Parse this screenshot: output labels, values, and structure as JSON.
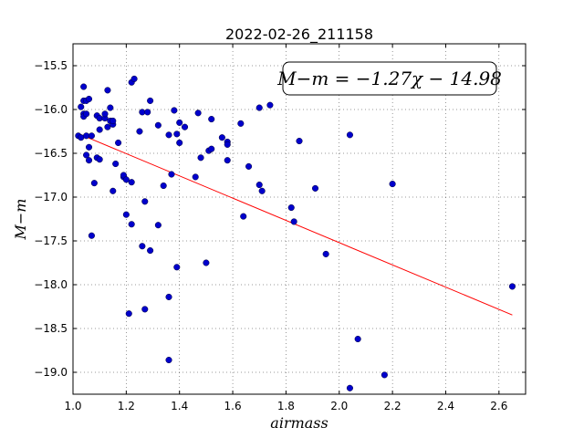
{
  "chart_data": {
    "type": "scatter",
    "title": "2022-02-26_211158",
    "xlabel": "airmass",
    "ylabel": "M−m",
    "xlim": [
      1.0,
      2.7
    ],
    "ylim": [
      -19.25,
      -15.25
    ],
    "xticks": [
      1.0,
      1.2,
      1.4,
      1.6,
      1.8,
      2.0,
      2.2,
      2.4,
      2.6
    ],
    "xtick_labels": [
      "1.0",
      "1.2",
      "1.4",
      "1.6",
      "1.8",
      "2.0",
      "2.2",
      "2.4",
      "2.6"
    ],
    "yticks": [
      -15.5,
      -16.0,
      -16.5,
      -17.0,
      -17.5,
      -18.0,
      -18.5,
      -19.0
    ],
    "ytick_labels": [
      "−15.5",
      "−16.0",
      "−16.5",
      "−17.0",
      "−17.5",
      "−18.0",
      "−18.5",
      "−19.0"
    ],
    "grid": true,
    "annotation": "M−m = −1.27χ − 14.98",
    "annotation_placement": "top-right",
    "fit": {
      "slope": -1.27,
      "intercept": -14.98,
      "x_range": [
        1.02,
        2.65
      ],
      "color": "#ff0000"
    },
    "marker_color": "#0000cc",
    "points": [
      [
        1.02,
        -16.3
      ],
      [
        1.03,
        -16.32
      ],
      [
        1.03,
        -15.97
      ],
      [
        1.04,
        -15.74
      ],
      [
        1.04,
        -15.9
      ],
      [
        1.04,
        -16.05
      ],
      [
        1.04,
        -16.08
      ],
      [
        1.05,
        -15.9
      ],
      [
        1.05,
        -16.05
      ],
      [
        1.05,
        -16.3
      ],
      [
        1.05,
        -16.52
      ],
      [
        1.06,
        -15.88
      ],
      [
        1.06,
        -16.43
      ],
      [
        1.06,
        -16.58
      ],
      [
        1.07,
        -16.3
      ],
      [
        1.07,
        -17.44
      ],
      [
        1.08,
        -16.84
      ],
      [
        1.09,
        -16.07
      ],
      [
        1.09,
        -16.55
      ],
      [
        1.1,
        -16.1
      ],
      [
        1.1,
        -16.23
      ],
      [
        1.1,
        -16.57
      ],
      [
        1.12,
        -16.1
      ],
      [
        1.12,
        -16.05
      ],
      [
        1.13,
        -15.78
      ],
      [
        1.13,
        -16.2
      ],
      [
        1.14,
        -16.13
      ],
      [
        1.14,
        -15.98
      ],
      [
        1.15,
        -16.17
      ],
      [
        1.15,
        -16.13
      ],
      [
        1.15,
        -16.93
      ],
      [
        1.16,
        -16.62
      ],
      [
        1.17,
        -16.38
      ],
      [
        1.19,
        -16.77
      ],
      [
        1.19,
        -16.75
      ],
      [
        1.2,
        -17.2
      ],
      [
        1.2,
        -16.8
      ],
      [
        1.21,
        -18.33
      ],
      [
        1.22,
        -15.69
      ],
      [
        1.22,
        -16.83
      ],
      [
        1.22,
        -17.31
      ],
      [
        1.23,
        -15.65
      ],
      [
        1.25,
        -16.25
      ],
      [
        1.26,
        -16.03
      ],
      [
        1.26,
        -17.56
      ],
      [
        1.27,
        -17.05
      ],
      [
        1.27,
        -18.28
      ],
      [
        1.28,
        -16.03
      ],
      [
        1.29,
        -15.9
      ],
      [
        1.29,
        -17.61
      ],
      [
        1.32,
        -16.18
      ],
      [
        1.32,
        -17.32
      ],
      [
        1.34,
        -16.87
      ],
      [
        1.36,
        -16.29
      ],
      [
        1.36,
        -18.14
      ],
      [
        1.36,
        -18.86
      ],
      [
        1.37,
        -16.74
      ],
      [
        1.38,
        -16.01
      ],
      [
        1.39,
        -16.28
      ],
      [
        1.39,
        -17.8
      ],
      [
        1.4,
        -16.15
      ],
      [
        1.4,
        -16.38
      ],
      [
        1.42,
        -16.2
      ],
      [
        1.46,
        -16.77
      ],
      [
        1.47,
        -16.04
      ],
      [
        1.48,
        -16.55
      ],
      [
        1.5,
        -17.75
      ],
      [
        1.51,
        -16.47
      ],
      [
        1.52,
        -16.45
      ],
      [
        1.52,
        -16.11
      ],
      [
        1.56,
        -16.32
      ],
      [
        1.58,
        -16.37
      ],
      [
        1.58,
        -16.4
      ],
      [
        1.58,
        -16.58
      ],
      [
        1.63,
        -16.16
      ],
      [
        1.64,
        -17.22
      ],
      [
        1.66,
        -16.65
      ],
      [
        1.7,
        -15.98
      ],
      [
        1.7,
        -16.86
      ],
      [
        1.71,
        -16.93
      ],
      [
        1.74,
        -15.95
      ],
      [
        1.82,
        -17.12
      ],
      [
        1.83,
        -17.28
      ],
      [
        1.85,
        -16.36
      ],
      [
        1.91,
        -16.9
      ],
      [
        1.95,
        -17.65
      ],
      [
        2.04,
        -16.29
      ],
      [
        2.04,
        -19.18
      ],
      [
        2.07,
        -18.62
      ],
      [
        2.17,
        -19.03
      ],
      [
        2.2,
        -16.85
      ],
      [
        2.65,
        -18.02
      ]
    ]
  }
}
